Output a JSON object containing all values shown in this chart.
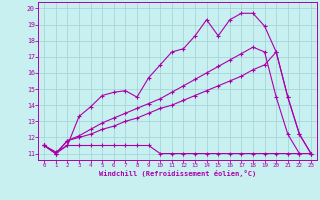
{
  "title": "",
  "xlabel": "Windchill (Refroidissement éolien,°C)",
  "ylabel": "",
  "bg_color": "#c8f0f0",
  "line_color": "#aa00aa",
  "grid_color": "#a0d0d0",
  "xlim": [
    -0.5,
    23.5
  ],
  "ylim": [
    10.6,
    20.4
  ],
  "yticks": [
    11,
    12,
    13,
    14,
    15,
    16,
    17,
    18,
    19,
    20
  ],
  "xticks": [
    0,
    1,
    2,
    3,
    4,
    5,
    6,
    7,
    8,
    9,
    10,
    11,
    12,
    13,
    14,
    15,
    16,
    17,
    18,
    19,
    20,
    21,
    22,
    23
  ],
  "series": [
    {
      "x": [
        0,
        1,
        2,
        3,
        4,
        5,
        6,
        7,
        8,
        9,
        10,
        11,
        12,
        13,
        14,
        15,
        16,
        17,
        18,
        19,
        20,
        21,
        22,
        23
      ],
      "y": [
        11.5,
        11.1,
        11.5,
        13.3,
        13.9,
        14.6,
        14.8,
        14.9,
        14.5,
        15.7,
        16.5,
        17.3,
        17.5,
        18.3,
        19.3,
        18.3,
        19.3,
        19.7,
        19.7,
        18.9,
        17.3,
        14.5,
        12.2,
        11.0
      ]
    },
    {
      "x": [
        0,
        1,
        2,
        3,
        4,
        5,
        6,
        7,
        8,
        9,
        10,
        11,
        12,
        13,
        14,
        15,
        16,
        17,
        18,
        19,
        20,
        21,
        22,
        23
      ],
      "y": [
        11.5,
        11.0,
        11.8,
        12.1,
        12.5,
        12.9,
        13.2,
        13.5,
        13.8,
        14.1,
        14.4,
        14.8,
        15.2,
        15.6,
        16.0,
        16.4,
        16.8,
        17.2,
        17.6,
        17.3,
        14.5,
        12.2,
        11.0,
        null
      ]
    },
    {
      "x": [
        0,
        1,
        2,
        3,
        4,
        5,
        6,
        7,
        8,
        9,
        10,
        11,
        12,
        13,
        14,
        15,
        16,
        17,
        18,
        19,
        20,
        21,
        22,
        23
      ],
      "y": [
        11.5,
        11.0,
        11.8,
        12.0,
        12.2,
        12.5,
        12.7,
        13.0,
        13.2,
        13.5,
        13.8,
        14.0,
        14.3,
        14.6,
        14.9,
        15.2,
        15.5,
        15.8,
        16.2,
        16.5,
        17.3,
        14.5,
        12.2,
        11.0
      ]
    },
    {
      "x": [
        0,
        1,
        2,
        3,
        4,
        5,
        6,
        7,
        8,
        9,
        10,
        11,
        12,
        13,
        14,
        15,
        16,
        17,
        18,
        19,
        20,
        21,
        22,
        23
      ],
      "y": [
        11.5,
        11.0,
        11.5,
        11.5,
        11.5,
        11.5,
        11.5,
        11.5,
        11.5,
        11.5,
        11.0,
        11.0,
        11.0,
        11.0,
        11.0,
        11.0,
        11.0,
        11.0,
        11.0,
        11.0,
        11.0,
        11.0,
        11.0,
        11.0
      ]
    }
  ]
}
